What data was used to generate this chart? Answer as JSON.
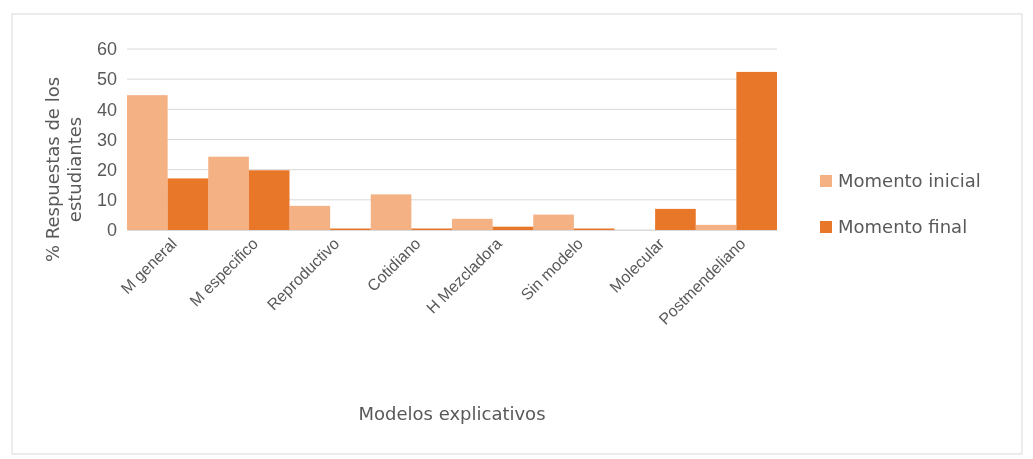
{
  "chart_data": {
    "type": "bar",
    "xlabel": "Modelos explicativos",
    "ylabel": "% Respuestas de los estudiantes",
    "categories": [
      "M general",
      "M especifico",
      "Reproductivo",
      "Cotidiano",
      "H Mezcladora",
      "Sin modelo",
      "Molecular",
      "Postmendeliano"
    ],
    "series": [
      {
        "name": "Momento inicial",
        "color": "#f4b183",
        "values": [
          44.7,
          24.3,
          8,
          11.8,
          3.7,
          5.1,
          0,
          1.7
        ]
      },
      {
        "name": "Momento final",
        "color": "#e9772a",
        "values": [
          17.1,
          19.8,
          0.5,
          0.5,
          1.1,
          0.5,
          7,
          52.4
        ]
      }
    ],
    "ylim": [
      0,
      60
    ],
    "yticks": [
      0,
      10,
      20,
      30,
      40,
      50,
      60
    ],
    "grid": "y",
    "legend": "right"
  }
}
